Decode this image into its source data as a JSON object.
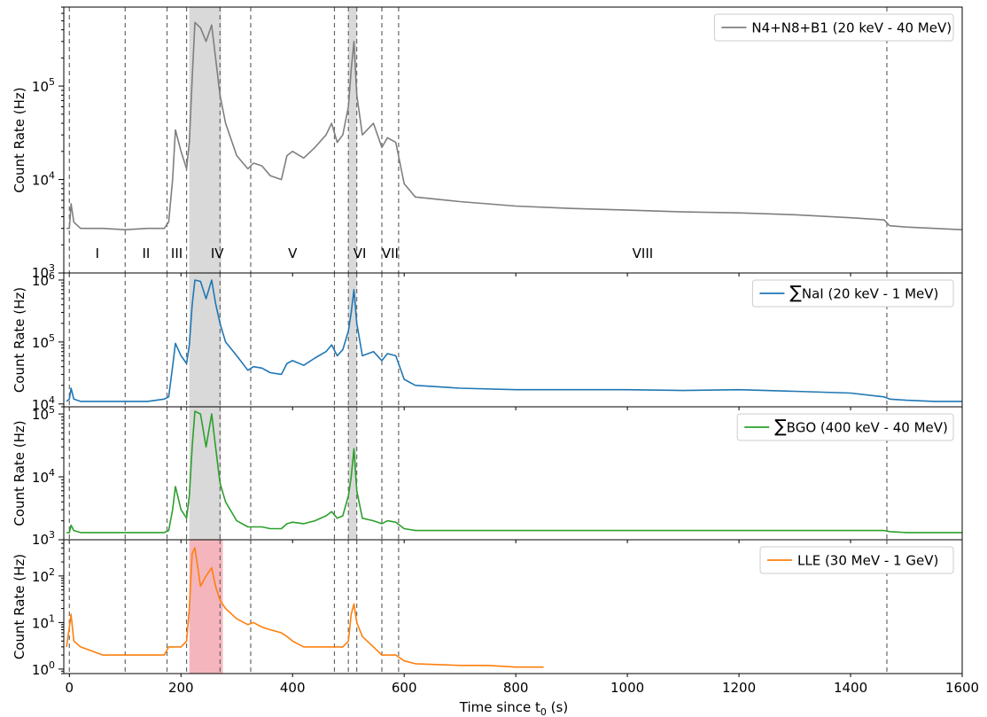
{
  "figure": {
    "xlabel": "Time since t",
    "xlabel_sub": "0",
    "xlabel_unit": " (s)",
    "ylabel": "Count Rate (Hz)"
  },
  "chart_data": [
    {
      "type": "line",
      "panel": "top",
      "yscale": "log",
      "ylim": [
        1000,
        700000
      ],
      "xlim": [
        -10,
        1600
      ],
      "grid": false,
      "legend_position": "top-right",
      "series": [
        {
          "name": "N4+N8+B1 (20 keV - 40 MeV)",
          "color": "#7f7f7f",
          "x": [
            -5,
            0,
            3,
            8,
            20,
            60,
            100,
            140,
            170,
            178,
            185,
            190,
            200,
            210,
            215,
            220,
            225,
            235,
            245,
            255,
            262,
            270,
            280,
            300,
            320,
            330,
            345,
            360,
            380,
            390,
            400,
            420,
            440,
            460,
            470,
            480,
            490,
            500,
            505,
            510,
            515,
            525,
            545,
            560,
            570,
            585,
            600,
            620,
            700,
            800,
            900,
            1000,
            1100,
            1200,
            1300,
            1400,
            1460,
            1470,
            1500,
            1550,
            1600
          ],
          "y": [
            3000,
            3000,
            5500,
            3500,
            3000,
            3000,
            2900,
            3000,
            3000,
            3500,
            10000,
            34000,
            20000,
            13000,
            25000,
            120000,
            480000,
            420000,
            300000,
            450000,
            200000,
            80000,
            40000,
            18000,
            13000,
            15000,
            14000,
            11000,
            10000,
            18000,
            20000,
            17000,
            22000,
            30000,
            40000,
            25000,
            30000,
            60000,
            150000,
            300000,
            80000,
            30000,
            40000,
            22000,
            28000,
            25000,
            9000,
            6500,
            5800,
            5200,
            4900,
            4700,
            4500,
            4400,
            4200,
            3900,
            3700,
            3200,
            3100,
            3000,
            2900
          ]
        }
      ],
      "intervals": [
        "I",
        "II",
        "III",
        "IV",
        "V",
        "VI",
        "VII",
        "VIII"
      ],
      "ticks": [
        "10^3",
        "10^4",
        "10^5"
      ]
    },
    {
      "type": "line",
      "panel": "second",
      "yscale": "log",
      "ylim": [
        9000,
        1300000
      ],
      "xlim": [
        -10,
        1600
      ],
      "grid": false,
      "legend_position": "top-right",
      "series": [
        {
          "name": "NaI (20 keV - 1 MeV)",
          "name_prefix": "∑",
          "color": "#1f77b4",
          "x": [
            -5,
            0,
            3,
            8,
            20,
            60,
            100,
            140,
            170,
            178,
            185,
            190,
            200,
            210,
            215,
            220,
            225,
            235,
            245,
            255,
            262,
            270,
            280,
            300,
            320,
            330,
            345,
            360,
            380,
            390,
            400,
            420,
            440,
            460,
            470,
            480,
            490,
            500,
            505,
            510,
            515,
            525,
            545,
            560,
            570,
            585,
            600,
            620,
            700,
            800,
            900,
            1000,
            1100,
            1200,
            1300,
            1400,
            1460,
            1470,
            1500,
            1550,
            1600
          ],
          "y": [
            11000,
            12000,
            18000,
            12000,
            11000,
            11000,
            11000,
            11000,
            12000,
            13000,
            40000,
            95000,
            60000,
            45000,
            90000,
            400000,
            1000000,
            950000,
            500000,
            1000000,
            420000,
            200000,
            100000,
            60000,
            35000,
            40000,
            38000,
            32000,
            30000,
            45000,
            50000,
            42000,
            55000,
            70000,
            90000,
            60000,
            75000,
            150000,
            300000,
            700000,
            200000,
            60000,
            70000,
            50000,
            65000,
            60000,
            25000,
            20000,
            18000,
            17000,
            17000,
            17000,
            16500,
            17000,
            16000,
            15000,
            13000,
            12000,
            11500,
            11000,
            11000
          ]
        }
      ],
      "ticks": [
        "10^4",
        "10^5",
        "10^6"
      ]
    },
    {
      "type": "line",
      "panel": "third",
      "yscale": "log",
      "ylim": [
        1000,
        130000
      ],
      "xlim": [
        -10,
        1600
      ],
      "grid": false,
      "legend_position": "top-right",
      "series": [
        {
          "name": "BGO (400 keV - 40 MeV)",
          "name_prefix": "∑",
          "color": "#2ca02c",
          "x": [
            -5,
            0,
            3,
            8,
            20,
            60,
            100,
            140,
            170,
            178,
            185,
            190,
            200,
            210,
            215,
            220,
            225,
            235,
            245,
            255,
            262,
            270,
            280,
            300,
            320,
            330,
            345,
            360,
            380,
            390,
            400,
            420,
            440,
            460,
            470,
            480,
            490,
            500,
            505,
            510,
            515,
            525,
            545,
            560,
            570,
            585,
            600,
            620,
            700,
            800,
            900,
            1000,
            1100,
            1200,
            1300,
            1400,
            1460,
            1470,
            1500,
            1550,
            1600
          ],
          "y": [
            1300,
            1300,
            1700,
            1400,
            1300,
            1300,
            1300,
            1300,
            1300,
            1400,
            3000,
            7000,
            3000,
            2200,
            5000,
            30000,
            110000,
            100000,
            30000,
            100000,
            30000,
            8000,
            4000,
            2000,
            1600,
            1600,
            1600,
            1500,
            1500,
            1800,
            1900,
            1800,
            2000,
            2400,
            2800,
            2200,
            2400,
            5000,
            10000,
            28000,
            6000,
            2200,
            2000,
            1800,
            2000,
            1900,
            1500,
            1400,
            1400,
            1400,
            1400,
            1400,
            1400,
            1400,
            1400,
            1400,
            1400,
            1350,
            1300,
            1300,
            1300
          ]
        }
      ],
      "ticks": [
        "10^3",
        "10^4",
        "10^5"
      ]
    },
    {
      "type": "line",
      "panel": "bottom",
      "yscale": "log",
      "ylim": [
        0.8,
        600
      ],
      "xlim": [
        -10,
        1600
      ],
      "grid": false,
      "legend_position": "top-right",
      "series": [
        {
          "name": "LLE (30 MeV - 1 GeV)",
          "color": "#ff7f0e",
          "x": [
            -5,
            0,
            3,
            8,
            20,
            60,
            100,
            140,
            170,
            178,
            185,
            190,
            200,
            210,
            215,
            220,
            225,
            235,
            245,
            255,
            262,
            270,
            280,
            300,
            320,
            330,
            345,
            360,
            380,
            390,
            400,
            420,
            440,
            460,
            470,
            480,
            490,
            500,
            505,
            510,
            515,
            525,
            545,
            560,
            570,
            585,
            600,
            620,
            700,
            750,
            800,
            850
          ],
          "y": [
            3,
            8,
            15,
            4,
            3,
            2,
            2,
            2,
            2,
            3,
            3,
            3,
            3,
            4,
            20,
            300,
            400,
            60,
            100,
            150,
            60,
            30,
            20,
            12,
            9,
            10,
            8,
            7,
            6,
            5,
            4,
            3,
            3,
            3,
            3,
            3,
            3,
            4,
            15,
            25,
            10,
            5,
            3,
            2,
            2,
            2,
            1.5,
            1.3,
            1.2,
            1.2,
            1.1,
            1.1
          ]
        }
      ],
      "ticks": [
        "10^0",
        "10^1",
        "10^2"
      ]
    }
  ],
  "shared_x_ticks": [
    "0",
    "200",
    "400",
    "600",
    "800",
    "1000",
    "1200",
    "1400",
    "1600"
  ],
  "colors": {
    "top": "#7f7f7f",
    "nai": "#1f77b4",
    "bgo": "#2ca02c",
    "lle": "#ff7f0e",
    "shade_gray": "#d9d9d9",
    "shade_red": "#f4b6bc"
  },
  "interval_bounds_s": [
    0,
    100,
    175,
    210,
    270,
    325,
    475,
    500,
    515,
    560,
    590,
    1465
  ],
  "shaded_gray_s": [
    [
      215,
      272
    ],
    [
      500,
      515
    ]
  ],
  "shaded_red_s": [
    [
      215,
      275
    ]
  ]
}
